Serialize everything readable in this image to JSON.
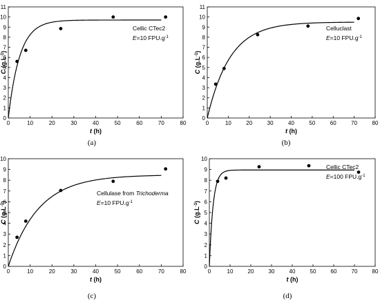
{
  "chart_data": [
    {
      "type": "scatter",
      "panel_label": "(a)",
      "annotation_lines": [
        "Cellic CTec2",
        "E=10 FPU.g-1"
      ],
      "xlabel": "t (h)",
      "ylabel": "C (g.L-1)",
      "xlim": [
        0,
        80
      ],
      "ylim": [
        0,
        11
      ],
      "x_ticks": [
        0,
        10,
        20,
        30,
        40,
        50,
        60,
        70,
        80
      ],
      "y_ticks": [
        0,
        1,
        2,
        3,
        4,
        5,
        6,
        7,
        8,
        9,
        10,
        11
      ],
      "grid": false,
      "series": [
        {
          "kind": "points",
          "x": [
            4,
            8,
            24,
            48,
            72
          ],
          "y": [
            5.6,
            6.7,
            8.85,
            10.0,
            10.0
          ]
        },
        {
          "kind": "fit_curve",
          "model": "first-order",
          "Cmax": 9.7,
          "k": 0.19
        }
      ]
    },
    {
      "type": "scatter",
      "panel_label": "(b)",
      "annotation_lines": [
        "Celluclast",
        "E=10 FPU.g-1"
      ],
      "xlabel": "t (h)",
      "ylabel": "C (g.L-1)",
      "xlim": [
        0,
        80
      ],
      "ylim": [
        0,
        11
      ],
      "x_ticks": [
        0,
        10,
        20,
        30,
        40,
        50,
        60,
        70,
        80
      ],
      "y_ticks": [
        0,
        1,
        2,
        3,
        4,
        5,
        6,
        7,
        8,
        9,
        10,
        11
      ],
      "grid": false,
      "series": [
        {
          "kind": "points",
          "x": [
            4,
            8,
            24,
            48,
            72
          ],
          "y": [
            3.35,
            4.9,
            8.25,
            9.1,
            9.85
          ]
        },
        {
          "kind": "fit_curve",
          "model": "first-order",
          "Cmax": 9.5,
          "k": 0.092
        }
      ]
    },
    {
      "type": "scatter",
      "panel_label": "(c)",
      "annotation_lines": [
        "Cellulase from Trichoderma",
        "E=10 FPU.g-1"
      ],
      "xlabel": "t (h)",
      "ylabel": "C (g.L-1)",
      "xlim": [
        0,
        80
      ],
      "ylim": [
        0,
        10
      ],
      "x_ticks": [
        0,
        10,
        20,
        30,
        40,
        50,
        60,
        70,
        80
      ],
      "y_ticks": [
        0,
        1,
        2,
        3,
        4,
        5,
        6,
        7,
        8,
        9,
        10
      ],
      "grid": false,
      "series": [
        {
          "kind": "points",
          "x": [
            4,
            8,
            24,
            48,
            72
          ],
          "y": [
            2.7,
            4.2,
            7.05,
            7.9,
            9.05
          ]
        },
        {
          "kind": "fit_curve",
          "model": "first-order",
          "Cmax": 8.5,
          "k": 0.072
        }
      ]
    },
    {
      "type": "scatter",
      "panel_label": "(d)",
      "annotation_lines": [
        "Cellic CTec2",
        "E=100 FPU.g-1"
      ],
      "xlabel": "t (h)",
      "ylabel": "C (g.L-1)",
      "xlim": [
        0,
        80
      ],
      "ylim": [
        0,
        10
      ],
      "x_ticks": [
        0,
        10,
        20,
        30,
        40,
        50,
        60,
        70,
        80
      ],
      "y_ticks": [
        0,
        1,
        2,
        3,
        4,
        5,
        6,
        7,
        8,
        9,
        10
      ],
      "grid": false,
      "series": [
        {
          "kind": "points",
          "x": [
            4,
            8,
            24,
            48,
            72
          ],
          "y": [
            7.9,
            8.2,
            9.25,
            9.35,
            8.75
          ]
        },
        {
          "kind": "fit_curve",
          "model": "first-order",
          "Cmax": 8.95,
          "k": 0.55
        }
      ]
    }
  ]
}
